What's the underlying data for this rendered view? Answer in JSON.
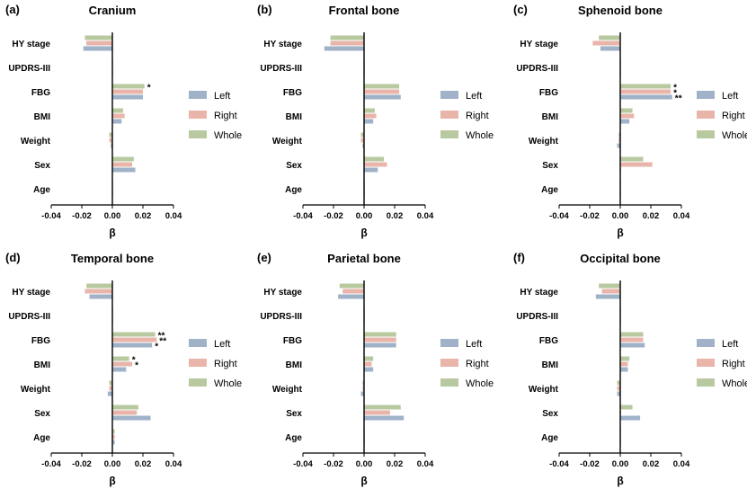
{
  "colors": {
    "Left": "#9fb2c8",
    "Right": "#e9b5aa",
    "Whole": "#b8c9a0"
  },
  "chart_data": [
    {
      "type": "bar",
      "orientation": "horizontal",
      "label": "(a)",
      "title": "Cranium",
      "categories": [
        "HY stage",
        "UPDRS-III",
        "FBG",
        "BMI",
        "Weight",
        "Sex",
        "Age"
      ],
      "series": [
        {
          "name": "Left",
          "values": [
            -0.019,
            0.0003,
            0.02,
            0.006,
            -0.001,
            0.015,
            0.0002
          ]
        },
        {
          "name": "Right",
          "values": [
            -0.017,
            0.0002,
            0.02,
            0.008,
            -0.002,
            0.013,
            0.0003
          ]
        },
        {
          "name": "Whole",
          "values": [
            -0.018,
            0.0002,
            0.021,
            0.007,
            -0.002,
            0.014,
            0.0002
          ]
        }
      ],
      "significance": [
        {
          "category": "FBG",
          "series": "Whole",
          "text": "*"
        }
      ],
      "xlim": [
        -0.04,
        0.04
      ],
      "xticks": [
        "-0.04",
        "-0.02",
        "0.00",
        "0.02",
        "0.04"
      ],
      "xlabel": "β",
      "legend": [
        "Left",
        "Right",
        "Whole"
      ]
    },
    {
      "type": "bar",
      "orientation": "horizontal",
      "label": "(b)",
      "title": "Frontal bone",
      "categories": [
        "HY stage",
        "UPDRS-III",
        "FBG",
        "BMI",
        "Weight",
        "Sex",
        "Age"
      ],
      "series": [
        {
          "name": "Left",
          "values": [
            -0.026,
            0.0003,
            0.024,
            0.006,
            -0.001,
            0.009,
            0.0002
          ]
        },
        {
          "name": "Right",
          "values": [
            -0.022,
            0.0002,
            0.023,
            0.008,
            -0.002,
            0.015,
            0.0003
          ]
        },
        {
          "name": "Whole",
          "values": [
            -0.022,
            0.0002,
            0.023,
            0.007,
            -0.002,
            0.013,
            0.0002
          ]
        }
      ],
      "significance": [],
      "xlim": [
        -0.04,
        0.04
      ],
      "xticks": [
        "-0.04",
        "-0.02",
        "0.00",
        "0.02",
        "0.04"
      ],
      "xlabel": "β",
      "legend": [
        "Left",
        "Right",
        "Whole"
      ]
    },
    {
      "type": "bar",
      "orientation": "horizontal",
      "label": "(c)",
      "title": "Sphenoid bone",
      "categories": [
        "HY stage",
        "UPDRS-III",
        "FBG",
        "BMI",
        "Weight",
        "Sex",
        "Age"
      ],
      "series": [
        {
          "name": "Left",
          "values": [
            -0.013,
            0.0002,
            0.034,
            0.006,
            -0.002,
            0.0002,
            0.0002
          ]
        },
        {
          "name": "Right",
          "values": [
            -0.018,
            0.0002,
            0.033,
            0.009,
            -0.001,
            0.021,
            0.0003
          ]
        },
        {
          "name": "Whole",
          "values": [
            -0.014,
            0.0002,
            0.033,
            0.008,
            -0.001,
            0.015,
            0.0002
          ]
        }
      ],
      "significance": [
        {
          "category": "FBG",
          "series": "Whole",
          "text": "*"
        },
        {
          "category": "FBG",
          "series": "Right",
          "text": "*"
        },
        {
          "category": "FBG",
          "series": "Left",
          "text": "**"
        }
      ],
      "xlim": [
        -0.04,
        0.04
      ],
      "xticks": [
        "-0.04",
        "-0.02",
        "0.00",
        "0.02",
        "0.04"
      ],
      "xlabel": "β",
      "legend": [
        "Left",
        "Right",
        "Whole"
      ]
    },
    {
      "type": "bar",
      "orientation": "horizontal",
      "label": "(d)",
      "title": "Temporal bone",
      "categories": [
        "HY stage",
        "UPDRS-III",
        "FBG",
        "BMI",
        "Weight",
        "Sex",
        "Age"
      ],
      "series": [
        {
          "name": "Left",
          "values": [
            -0.015,
            0.0002,
            0.026,
            0.009,
            -0.003,
            0.025,
            0.0015
          ]
        },
        {
          "name": "Right",
          "values": [
            -0.018,
            0.0002,
            0.029,
            0.013,
            -0.002,
            0.016,
            0.0015
          ]
        },
        {
          "name": "Whole",
          "values": [
            -0.017,
            0.0002,
            0.028,
            0.011,
            -0.002,
            0.017,
            0.0015
          ]
        }
      ],
      "significance": [
        {
          "category": "FBG",
          "series": "Whole",
          "text": "**"
        },
        {
          "category": "FBG",
          "series": "Right",
          "text": "**"
        },
        {
          "category": "FBG",
          "series": "Left",
          "text": "*"
        },
        {
          "category": "BMI",
          "series": "Whole",
          "text": "*"
        },
        {
          "category": "BMI",
          "series": "Right",
          "text": "*"
        }
      ],
      "xlim": [
        -0.04,
        0.04
      ],
      "xticks": [
        "-0.04",
        "-0.02",
        "0.00",
        "0.02",
        "0.04"
      ],
      "xlabel": "β",
      "legend": [
        "Left",
        "Right",
        "Whole"
      ]
    },
    {
      "type": "bar",
      "orientation": "horizontal",
      "label": "(e)",
      "title": "Parietal bone",
      "categories": [
        "HY stage",
        "UPDRS-III",
        "FBG",
        "BMI",
        "Weight",
        "Sex",
        "Age"
      ],
      "series": [
        {
          "name": "Left",
          "values": [
            -0.017,
            0.0003,
            0.021,
            0.006,
            -0.002,
            0.026,
            0.0002
          ]
        },
        {
          "name": "Right",
          "values": [
            -0.014,
            0.0002,
            0.021,
            0.005,
            -0.001,
            0.017,
            0.0002
          ]
        },
        {
          "name": "Whole",
          "values": [
            -0.016,
            0.0002,
            0.021,
            0.006,
            -0.001,
            0.024,
            0.0002
          ]
        }
      ],
      "significance": [],
      "xlim": [
        -0.04,
        0.04
      ],
      "xticks": [
        "-0.04",
        "-0.02",
        "0.00",
        "0.02",
        "0.04"
      ],
      "xlabel": "β",
      "legend": [
        "Left",
        "Right",
        "Whole"
      ]
    },
    {
      "type": "bar",
      "orientation": "horizontal",
      "label": "(f)",
      "title": "Occipital bone",
      "categories": [
        "HY stage",
        "UPDRS-III",
        "FBG",
        "BMI",
        "Weight",
        "Sex",
        "Age"
      ],
      "series": [
        {
          "name": "Left",
          "values": [
            -0.016,
            0.0003,
            0.016,
            0.005,
            -0.002,
            0.013,
            0.0002
          ]
        },
        {
          "name": "Right",
          "values": [
            -0.012,
            0.0002,
            0.015,
            0.005,
            -0.002,
            0.0002,
            0.0002
          ]
        },
        {
          "name": "Whole",
          "values": [
            -0.014,
            0.0002,
            0.015,
            0.006,
            -0.002,
            0.008,
            0.0002
          ]
        }
      ],
      "significance": [],
      "xlim": [
        -0.04,
        0.04
      ],
      "xticks": [
        "-0.04",
        "-0.02",
        "0.00",
        "0.02",
        "0.04"
      ],
      "xlabel": "β",
      "legend": [
        "Left",
        "Right",
        "Whole"
      ]
    }
  ]
}
